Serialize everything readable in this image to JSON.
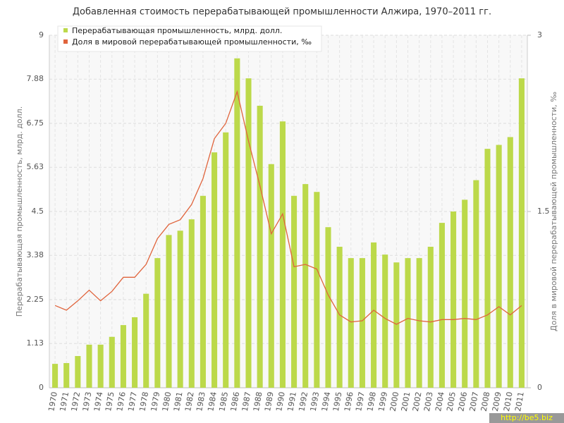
{
  "chart_data": {
    "type": "bar",
    "title": "Добавленная стоимость перерабатывающей промышленности Алжира, 1970–2011 гг.",
    "y_label": "Перерабатывающая промышленность, млрд. долл.",
    "y2_label": "Доля в мировой перерабатывающей промышленности, ‰",
    "watermark": "http://be5.biz",
    "categories": [
      "1970",
      "1971",
      "1972",
      "1973",
      "1974",
      "1975",
      "1976",
      "1977",
      "1978",
      "1979",
      "1980",
      "1981",
      "1982",
      "1983",
      "1984",
      "1985",
      "1986",
      "1987",
      "1988",
      "1989",
      "1990",
      "1991",
      "1992",
      "1993",
      "1994",
      "1995",
      "1996",
      "1997",
      "1998",
      "1999",
      "2000",
      "2001",
      "2002",
      "2003",
      "2004",
      "2005",
      "2006",
      "2007",
      "2008",
      "2009",
      "2010",
      "2011"
    ],
    "series": [
      {
        "name": "Перерабатывающая промышленность, млрд. долл.",
        "type": "bar",
        "color": "#bcd94a",
        "values": [
          0.61,
          0.63,
          0.81,
          1.1,
          1.1,
          1.3,
          1.6,
          1.8,
          2.4,
          3.31,
          3.9,
          4.01,
          4.3,
          4.9,
          6.01,
          6.52,
          8.41,
          7.9,
          7.2,
          5.71,
          6.8,
          4.9,
          5.2,
          5.0,
          4.1,
          3.6,
          3.31,
          3.31,
          3.71,
          3.4,
          3.2,
          3.31,
          3.31,
          3.6,
          4.21,
          4.5,
          4.8,
          5.3,
          6.1,
          6.2,
          6.4,
          7.9
        ]
      },
      {
        "name": "Доля в мировой перерабатывающей промышленности, ‰",
        "type": "line",
        "axis": "y2",
        "color": "#e0643c",
        "values": [
          0.7,
          0.66,
          0.74,
          0.83,
          0.74,
          0.82,
          0.94,
          0.94,
          1.05,
          1.27,
          1.39,
          1.43,
          1.56,
          1.78,
          2.12,
          2.25,
          2.52,
          2.1,
          1.72,
          1.31,
          1.48,
          1.03,
          1.05,
          1.01,
          0.79,
          0.62,
          0.56,
          0.57,
          0.66,
          0.59,
          0.54,
          0.59,
          0.57,
          0.56,
          0.58,
          0.58,
          0.59,
          0.58,
          0.62,
          0.69,
          0.62,
          0.7
        ]
      }
    ],
    "ylim": [
      0,
      9
    ],
    "yticks": [
      0,
      1.13,
      2.25,
      3.38,
      4.5,
      5.63,
      6.75,
      7.88,
      9
    ],
    "y2lim": [
      0,
      3
    ],
    "y2ticks": [
      0,
      1.5,
      3
    ],
    "grid": true
  }
}
